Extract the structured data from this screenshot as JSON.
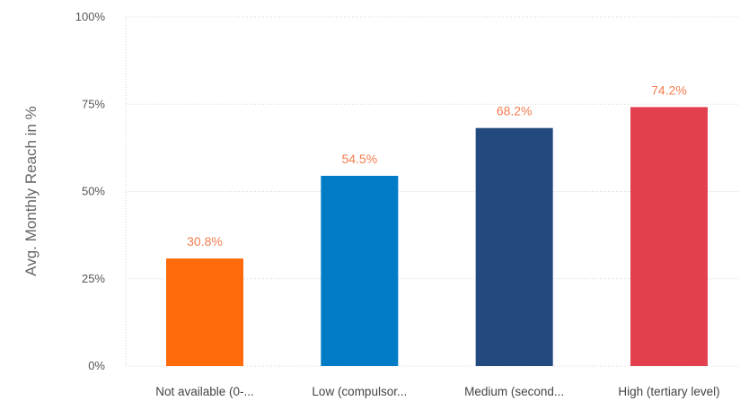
{
  "chart_data": {
    "type": "bar",
    "categories": [
      "Not available (0-...",
      "Low (compulsor...",
      "Medium (second...",
      "High (tertiary level)"
    ],
    "values": [
      30.8,
      54.5,
      68.2,
      74.2
    ],
    "value_labels": [
      "30.8%",
      "54.5%",
      "68.2%",
      "74.2%"
    ],
    "colors": [
      "#ff6a0a",
      "#007cc7",
      "#224a7e",
      "#e2404f"
    ],
    "ylabel": "Avg. Monthly Reach in %",
    "ylim": [
      0,
      100
    ],
    "yticks": [
      0,
      25,
      50,
      75,
      100
    ],
    "ytick_labels": [
      "0%",
      "25%",
      "50%",
      "75%",
      "100%"
    ],
    "grid": true,
    "label_color": "#f47c4e"
  }
}
